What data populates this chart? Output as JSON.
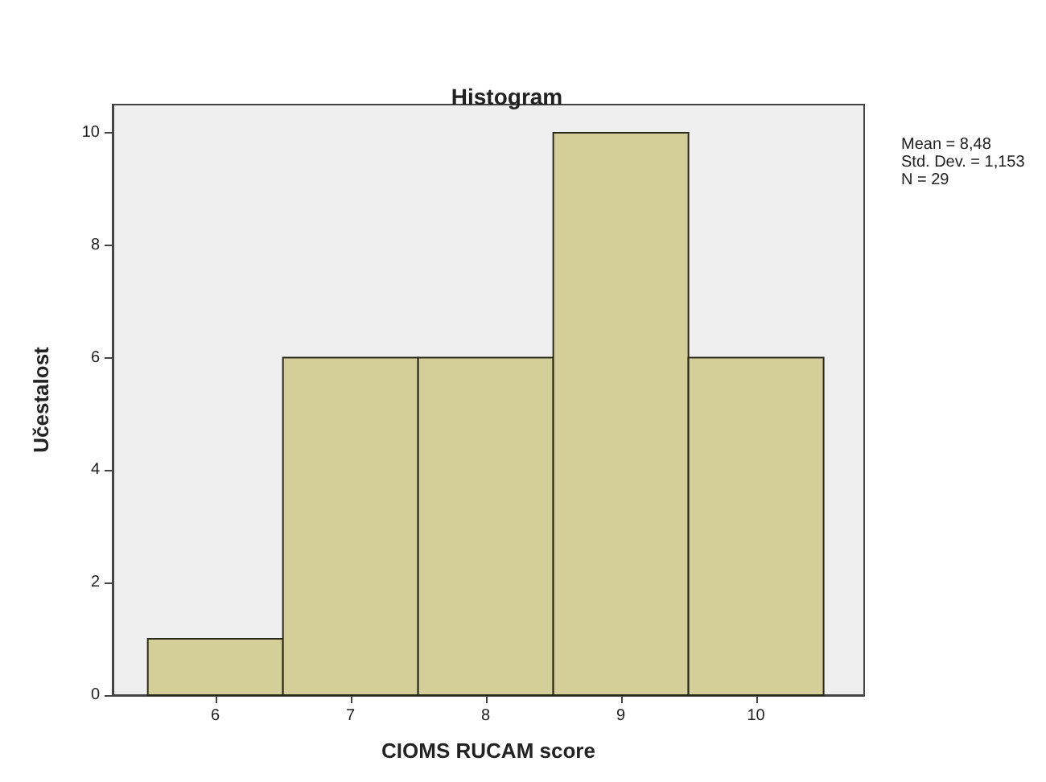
{
  "chart_data": {
    "type": "histogram",
    "title": "Histogram",
    "xlabel": "CIOMS RUCAM score",
    "ylabel": "Učestalost",
    "bins": [
      5.5,
      6.5,
      7.5,
      8.5,
      9.5,
      10.5
    ],
    "values": [
      1,
      6,
      6,
      10,
      6
    ],
    "color": "#d4cf98",
    "xlim": [
      5.24,
      10.8
    ],
    "xticks": [
      6,
      7,
      8,
      9,
      10
    ],
    "ylim": [
      0,
      10.5
    ],
    "yticks": [
      0,
      2,
      4,
      6,
      8,
      10
    ],
    "grid": false,
    "annotations": [
      "Mean = 8,48",
      "Std. Dev. = 1,153",
      "N = 29"
    ]
  }
}
